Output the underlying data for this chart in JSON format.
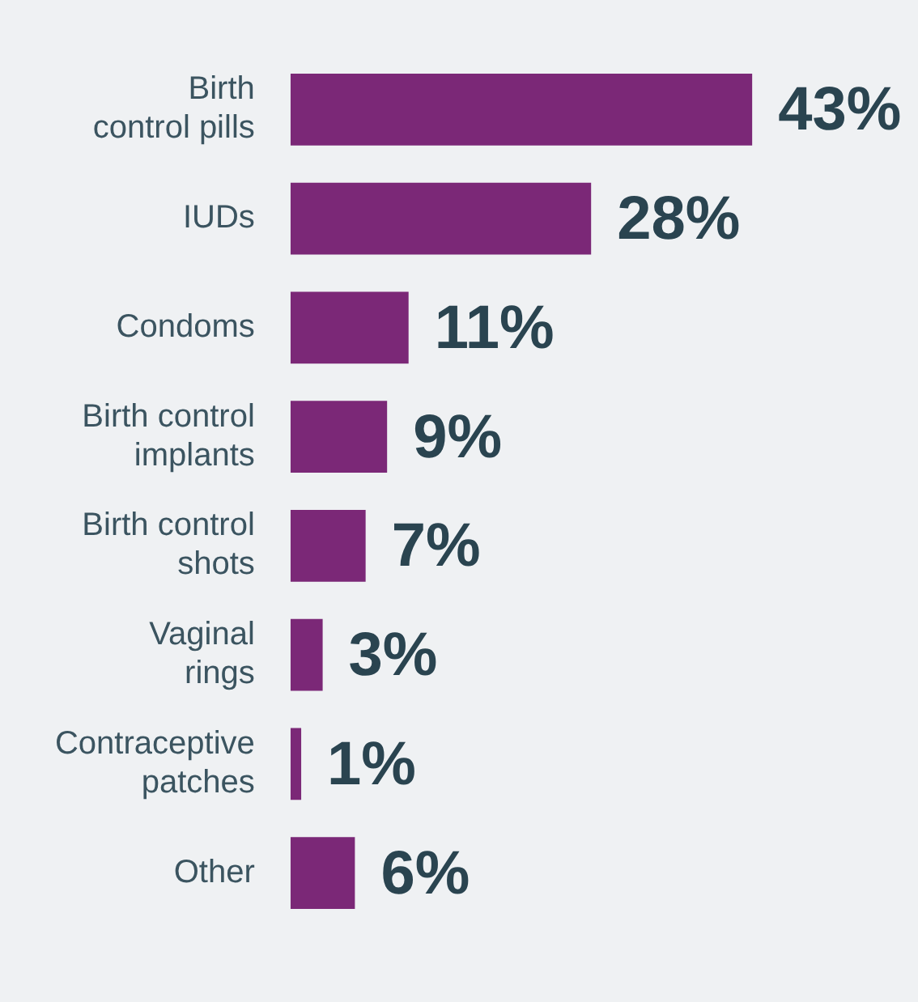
{
  "chart_data": {
    "type": "bar",
    "orientation": "horizontal",
    "categories": [
      "Birth\ncontrol pills",
      "IUDs",
      "Condoms",
      "Birth control\nimplants",
      "Birth control\nshots",
      "Vaginal\nrings",
      "Contraceptive\npatches",
      "Other"
    ],
    "values": [
      43,
      28,
      11,
      9,
      7,
      3,
      1,
      6
    ],
    "value_labels": [
      "43%",
      "28%",
      "11%",
      "9%",
      "7%",
      "3%",
      "1%",
      "6%"
    ],
    "color": "#7b2877",
    "tick_labels": "y",
    "legend": false
  }
}
